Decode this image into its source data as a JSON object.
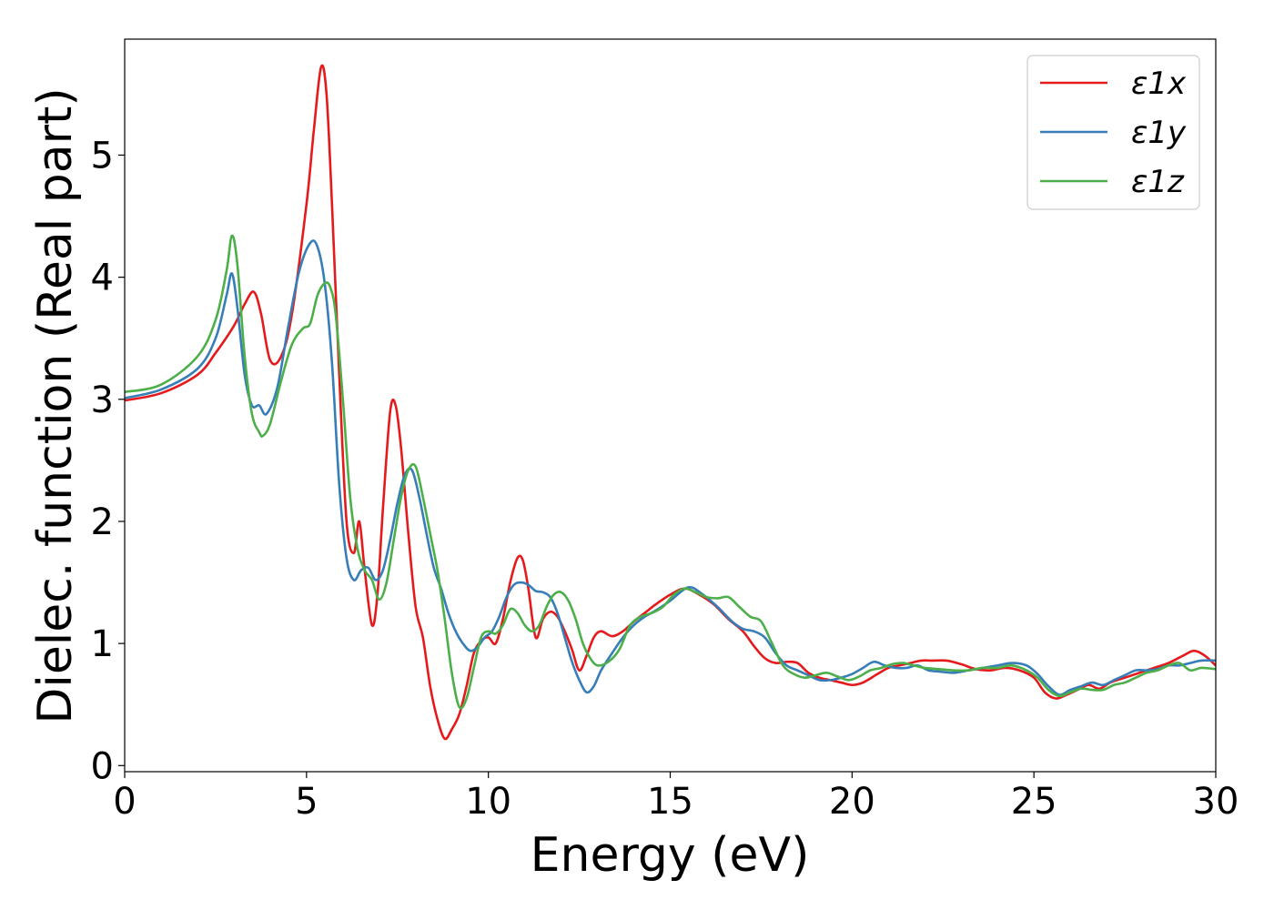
{
  "chart_data": {
    "type": "line",
    "title": "",
    "xlabel": "Energy (eV)",
    "ylabel": "Dielec. function (Real part)",
    "xlim": [
      0,
      30
    ],
    "ylim": [
      -0.05,
      5.95
    ],
    "xticks": [
      0,
      5,
      10,
      15,
      20,
      25,
      30
    ],
    "yticks": [
      0,
      1,
      2,
      3,
      4,
      5
    ],
    "grid": false,
    "legend_position": "top-right",
    "series": [
      {
        "name": "ε1x",
        "color": "#e41a1c",
        "x": [
          0,
          1,
          2,
          2.5,
          3,
          3.3,
          3.55,
          3.75,
          4.0,
          4.3,
          4.6,
          5.0,
          5.2,
          5.4,
          5.55,
          5.7,
          5.9,
          6.1,
          6.3,
          6.45,
          6.6,
          6.8,
          6.95,
          7.1,
          7.3,
          7.45,
          7.6,
          7.8,
          8.0,
          8.2,
          8.4,
          8.6,
          8.8,
          9.0,
          9.2,
          9.4,
          9.6,
          9.8,
          10.0,
          10.2,
          10.4,
          10.6,
          10.8,
          10.95,
          11.1,
          11.3,
          11.5,
          11.7,
          11.9,
          12.1,
          12.3,
          12.5,
          12.7,
          12.9,
          13.1,
          13.4,
          13.7,
          14.0,
          14.3,
          14.6,
          15.0,
          15.4,
          15.8,
          16.2,
          16.6,
          17.0,
          17.3,
          17.6,
          17.9,
          18.2,
          18.5,
          18.8,
          19.1,
          19.4,
          19.7,
          20.0,
          20.3,
          20.7,
          21.0,
          21.3,
          21.6,
          21.9,
          22.2,
          22.6,
          23.0,
          23.4,
          23.8,
          24.2,
          24.6,
          25.0,
          25.3,
          25.6,
          25.9,
          26.2,
          26.5,
          26.8,
          27.1,
          27.5,
          27.9,
          28.3,
          28.7,
          29.1,
          29.4,
          29.7,
          30.0
        ],
        "y": [
          2.99,
          3.05,
          3.2,
          3.38,
          3.6,
          3.78,
          3.88,
          3.7,
          3.32,
          3.35,
          3.7,
          4.6,
          5.2,
          5.72,
          5.5,
          4.6,
          3.2,
          2.0,
          1.74,
          2.0,
          1.6,
          1.15,
          1.4,
          2.1,
          2.9,
          2.95,
          2.6,
          1.9,
          1.3,
          1.05,
          0.65,
          0.38,
          0.22,
          0.3,
          0.42,
          0.65,
          0.92,
          1.02,
          1.05,
          1.0,
          1.2,
          1.5,
          1.7,
          1.68,
          1.45,
          1.05,
          1.2,
          1.26,
          1.22,
          1.1,
          0.95,
          0.78,
          0.9,
          1.05,
          1.1,
          1.06,
          1.1,
          1.18,
          1.25,
          1.32,
          1.4,
          1.45,
          1.4,
          1.32,
          1.2,
          1.1,
          0.98,
          0.88,
          0.84,
          0.85,
          0.84,
          0.76,
          0.72,
          0.7,
          0.68,
          0.66,
          0.68,
          0.75,
          0.8,
          0.82,
          0.84,
          0.86,
          0.86,
          0.86,
          0.83,
          0.79,
          0.78,
          0.8,
          0.78,
          0.72,
          0.6,
          0.55,
          0.58,
          0.62,
          0.66,
          0.63,
          0.68,
          0.72,
          0.76,
          0.8,
          0.84,
          0.9,
          0.94,
          0.9,
          0.82
        ]
      },
      {
        "name": "ε1y",
        "color": "#377eb8",
        "x": [
          0,
          1,
          2,
          2.5,
          2.8,
          2.95,
          3.1,
          3.3,
          3.5,
          3.7,
          3.9,
          4.2,
          4.5,
          4.8,
          5.1,
          5.3,
          5.5,
          5.7,
          5.9,
          6.1,
          6.3,
          6.5,
          6.7,
          6.9,
          7.1,
          7.3,
          7.5,
          7.7,
          7.9,
          8.1,
          8.3,
          8.5,
          8.7,
          8.9,
          9.1,
          9.3,
          9.5,
          9.7,
          9.9,
          10.1,
          10.3,
          10.5,
          10.7,
          10.9,
          11.1,
          11.3,
          11.5,
          11.7,
          11.9,
          12.1,
          12.3,
          12.5,
          12.7,
          12.9,
          13.1,
          13.4,
          13.7,
          14.0,
          14.3,
          14.6,
          15.0,
          15.5,
          15.9,
          16.3,
          16.7,
          17.0,
          17.3,
          17.6,
          17.9,
          18.2,
          18.5,
          18.8,
          19.1,
          19.4,
          19.7,
          20.0,
          20.3,
          20.6,
          20.9,
          21.2,
          21.5,
          21.8,
          22.1,
          22.4,
          22.8,
          23.2,
          23.6,
          24.0,
          24.4,
          24.8,
          25.1,
          25.4,
          25.7,
          26.0,
          26.3,
          26.6,
          26.9,
          27.2,
          27.5,
          27.8,
          28.1,
          28.4,
          28.7,
          29.0,
          29.3,
          29.6,
          30.0
        ],
        "y": [
          3.01,
          3.08,
          3.25,
          3.5,
          3.85,
          4.03,
          3.75,
          3.2,
          2.95,
          2.95,
          2.88,
          3.1,
          3.6,
          4.05,
          4.28,
          4.25,
          3.95,
          3.3,
          2.3,
          1.7,
          1.52,
          1.6,
          1.62,
          1.52,
          1.6,
          1.85,
          2.15,
          2.38,
          2.42,
          2.2,
          1.9,
          1.62,
          1.45,
          1.25,
          1.1,
          1.0,
          0.94,
          0.97,
          1.05,
          1.1,
          1.22,
          1.38,
          1.48,
          1.5,
          1.48,
          1.43,
          1.42,
          1.38,
          1.25,
          1.05,
          0.85,
          0.7,
          0.6,
          0.65,
          0.78,
          0.92,
          1.05,
          1.15,
          1.22,
          1.27,
          1.35,
          1.46,
          1.4,
          1.3,
          1.18,
          1.12,
          1.1,
          1.05,
          0.92,
          0.82,
          0.78,
          0.74,
          0.7,
          0.7,
          0.72,
          0.75,
          0.8,
          0.85,
          0.82,
          0.8,
          0.8,
          0.82,
          0.78,
          0.77,
          0.76,
          0.78,
          0.8,
          0.82,
          0.84,
          0.82,
          0.75,
          0.65,
          0.58,
          0.62,
          0.65,
          0.68,
          0.66,
          0.7,
          0.74,
          0.78,
          0.78,
          0.79,
          0.82,
          0.82,
          0.84,
          0.86,
          0.86
        ]
      },
      {
        "name": "ε1z",
        "color": "#4daf4a",
        "x": [
          0,
          1,
          2,
          2.5,
          2.8,
          2.95,
          3.1,
          3.3,
          3.5,
          3.7,
          3.8,
          4.0,
          4.3,
          4.6,
          4.9,
          5.1,
          5.3,
          5.5,
          5.65,
          5.8,
          6.0,
          6.2,
          6.4,
          6.6,
          6.8,
          7.0,
          7.2,
          7.4,
          7.6,
          7.8,
          8.0,
          8.2,
          8.4,
          8.6,
          8.8,
          9.0,
          9.2,
          9.4,
          9.6,
          9.8,
          10.0,
          10.2,
          10.4,
          10.6,
          10.8,
          11.0,
          11.2,
          11.4,
          11.6,
          11.8,
          12.0,
          12.2,
          12.4,
          12.6,
          12.8,
          13.0,
          13.3,
          13.6,
          13.9,
          14.2,
          14.5,
          14.8,
          15.1,
          15.4,
          15.7,
          16.0,
          16.3,
          16.6,
          16.9,
          17.2,
          17.5,
          17.8,
          18.1,
          18.4,
          18.7,
          19.0,
          19.3,
          19.6,
          19.9,
          20.2,
          20.5,
          20.8,
          21.1,
          21.4,
          21.7,
          22.0,
          22.4,
          22.8,
          23.2,
          23.6,
          24.0,
          24.4,
          24.8,
          25.1,
          25.4,
          25.7,
          26.0,
          26.3,
          26.6,
          26.9,
          27.2,
          27.5,
          27.8,
          28.1,
          28.4,
          28.7,
          29.0,
          29.3,
          29.6,
          30.0
        ],
        "y": [
          3.06,
          3.12,
          3.35,
          3.65,
          4.05,
          4.34,
          4.1,
          3.35,
          2.88,
          2.73,
          2.7,
          2.8,
          3.15,
          3.45,
          3.58,
          3.62,
          3.85,
          3.95,
          3.92,
          3.7,
          3.0,
          2.2,
          1.78,
          1.6,
          1.52,
          1.36,
          1.5,
          1.85,
          2.2,
          2.42,
          2.45,
          2.2,
          1.9,
          1.6,
          1.2,
          0.75,
          0.48,
          0.55,
          0.8,
          1.05,
          1.1,
          1.08,
          1.15,
          1.28,
          1.25,
          1.15,
          1.1,
          1.15,
          1.3,
          1.4,
          1.42,
          1.35,
          1.2,
          1.0,
          0.88,
          0.82,
          0.85,
          0.95,
          1.15,
          1.22,
          1.25,
          1.3,
          1.4,
          1.45,
          1.42,
          1.38,
          1.37,
          1.38,
          1.3,
          1.22,
          1.18,
          1.0,
          0.82,
          0.75,
          0.72,
          0.74,
          0.76,
          0.73,
          0.7,
          0.73,
          0.78,
          0.8,
          0.83,
          0.84,
          0.82,
          0.8,
          0.79,
          0.78,
          0.78,
          0.8,
          0.8,
          0.82,
          0.78,
          0.72,
          0.62,
          0.57,
          0.6,
          0.63,
          0.62,
          0.62,
          0.66,
          0.68,
          0.72,
          0.76,
          0.78,
          0.82,
          0.84,
          0.78,
          0.8,
          0.79
        ]
      }
    ]
  }
}
